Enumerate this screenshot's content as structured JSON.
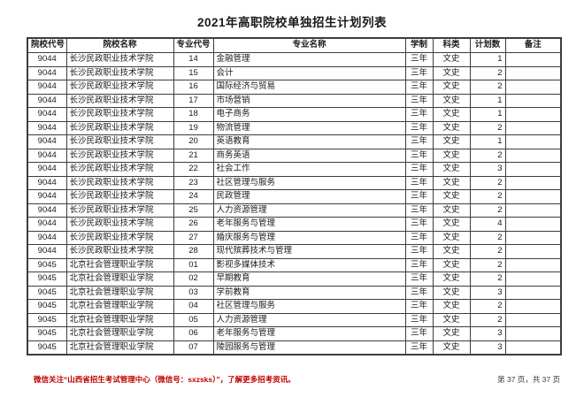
{
  "title": "2021年高职院校单独招生计划列表",
  "table": {
    "columns": [
      "院校代号",
      "院校名称",
      "专业代号",
      "专业名称",
      "学制",
      "科类",
      "计划数",
      "备注"
    ],
    "rows": [
      [
        "9044",
        "长沙民政职业技术学院",
        "14",
        "金融管理",
        "三年",
        "文史",
        "1",
        ""
      ],
      [
        "9044",
        "长沙民政职业技术学院",
        "15",
        "会计",
        "三年",
        "文史",
        "2",
        ""
      ],
      [
        "9044",
        "长沙民政职业技术学院",
        "16",
        "国际经济与贸易",
        "三年",
        "文史",
        "2",
        ""
      ],
      [
        "9044",
        "长沙民政职业技术学院",
        "17",
        "市场营销",
        "三年",
        "文史",
        "1",
        ""
      ],
      [
        "9044",
        "长沙民政职业技术学院",
        "18",
        "电子商务",
        "三年",
        "文史",
        "1",
        ""
      ],
      [
        "9044",
        "长沙民政职业技术学院",
        "19",
        "物流管理",
        "三年",
        "文史",
        "2",
        ""
      ],
      [
        "9044",
        "长沙民政职业技术学院",
        "20",
        "英语教育",
        "三年",
        "文史",
        "1",
        ""
      ],
      [
        "9044",
        "长沙民政职业技术学院",
        "21",
        "商务英语",
        "三年",
        "文史",
        "2",
        ""
      ],
      [
        "9044",
        "长沙民政职业技术学院",
        "22",
        "社会工作",
        "三年",
        "文史",
        "3",
        ""
      ],
      [
        "9044",
        "长沙民政职业技术学院",
        "23",
        "社区管理与服务",
        "三年",
        "文史",
        "2",
        ""
      ],
      [
        "9044",
        "长沙民政职业技术学院",
        "24",
        "民政管理",
        "三年",
        "文史",
        "2",
        ""
      ],
      [
        "9044",
        "长沙民政职业技术学院",
        "25",
        "人力资源管理",
        "三年",
        "文史",
        "2",
        ""
      ],
      [
        "9044",
        "长沙民政职业技术学院",
        "26",
        "老年服务与管理",
        "三年",
        "文史",
        "4",
        ""
      ],
      [
        "9044",
        "长沙民政职业技术学院",
        "27",
        "婚庆服务与管理",
        "三年",
        "文史",
        "2",
        ""
      ],
      [
        "9044",
        "长沙民政职业技术学院",
        "28",
        "现代殡葬技术与管理",
        "三年",
        "文史",
        "2",
        ""
      ],
      [
        "9045",
        "北京社会管理职业学院",
        "01",
        "影视多媒体技术",
        "三年",
        "文史",
        "2",
        ""
      ],
      [
        "9045",
        "北京社会管理职业学院",
        "02",
        "早期教育",
        "三年",
        "文史",
        "2",
        ""
      ],
      [
        "9045",
        "北京社会管理职业学院",
        "03",
        "学前教育",
        "三年",
        "文史",
        "3",
        ""
      ],
      [
        "9045",
        "北京社会管理职业学院",
        "04",
        "社区管理与服务",
        "三年",
        "文史",
        "2",
        ""
      ],
      [
        "9045",
        "北京社会管理职业学院",
        "05",
        "人力资源管理",
        "三年",
        "文史",
        "2",
        ""
      ],
      [
        "9045",
        "北京社会管理职业学院",
        "06",
        "老年服务与管理",
        "三年",
        "文史",
        "3",
        ""
      ],
      [
        "9045",
        "北京社会管理职业学院",
        "07",
        "陵园服务与管理",
        "三年",
        "文史",
        "3",
        ""
      ]
    ]
  },
  "footer": {
    "notice": "微信关注“山西省招生考试管理中心（微信号：sxzsks）”，了解更多招考资讯。",
    "page_info": "第 37 页，共 37 页",
    "notice_color": "#c00000"
  }
}
